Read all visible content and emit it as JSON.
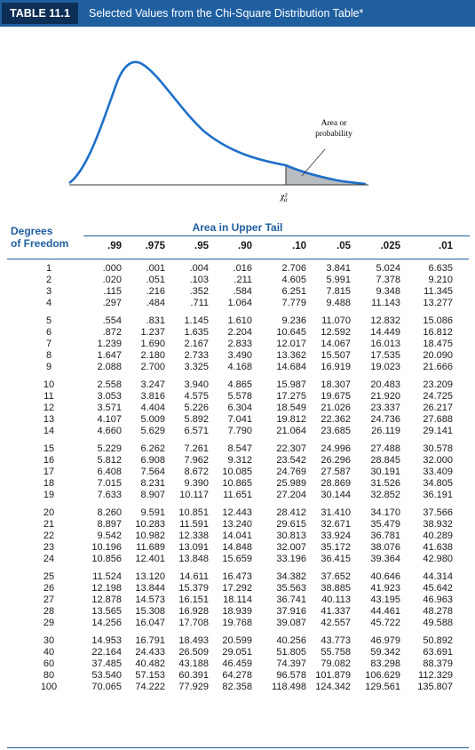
{
  "header": {
    "tag": "TABLE 11.1",
    "title": "Selected Values from the Chi-Square Distribution Table*"
  },
  "figure": {
    "annotation": "Area or\nprobability",
    "annotation_line1": "Area or",
    "annotation_line2": "probability",
    "critical_label": "χ²",
    "critical_sub": "α"
  },
  "table": {
    "dof_label_1": "Degrees",
    "dof_label_2": "of Freedom",
    "upper_tail_label": "Area in Upper Tail",
    "columns": [
      ".99",
      ".975",
      ".95",
      ".90",
      ".10",
      ".05",
      ".025",
      ".01"
    ],
    "groups": [
      [
        [
          "1",
          ".000",
          ".001",
          ".004",
          ".016",
          "2.706",
          "3.841",
          "5.024",
          "6.635"
        ],
        [
          "2",
          ".020",
          ".051",
          ".103",
          ".211",
          "4.605",
          "5.991",
          "7.378",
          "9.210"
        ],
        [
          "3",
          ".115",
          ".216",
          ".352",
          ".584",
          "6.251",
          "7.815",
          "9.348",
          "11.345"
        ],
        [
          "4",
          ".297",
          ".484",
          ".711",
          "1.064",
          "7.779",
          "9.488",
          "11.143",
          "13.277"
        ]
      ],
      [
        [
          "5",
          ".554",
          ".831",
          "1.145",
          "1.610",
          "9.236",
          "11.070",
          "12.832",
          "15.086"
        ],
        [
          "6",
          ".872",
          "1.237",
          "1.635",
          "2.204",
          "10.645",
          "12.592",
          "14.449",
          "16.812"
        ],
        [
          "7",
          "1.239",
          "1.690",
          "2.167",
          "2.833",
          "12.017",
          "14.067",
          "16.013",
          "18.475"
        ],
        [
          "8",
          "1.647",
          "2.180",
          "2.733",
          "3.490",
          "13.362",
          "15.507",
          "17.535",
          "20.090"
        ],
        [
          "9",
          "2.088",
          "2.700",
          "3.325",
          "4.168",
          "14.684",
          "16.919",
          "19.023",
          "21.666"
        ]
      ],
      [
        [
          "10",
          "2.558",
          "3.247",
          "3.940",
          "4.865",
          "15.987",
          "18.307",
          "20.483",
          "23.209"
        ],
        [
          "11",
          "3.053",
          "3.816",
          "4.575",
          "5.578",
          "17.275",
          "19.675",
          "21.920",
          "24.725"
        ],
        [
          "12",
          "3.571",
          "4.404",
          "5.226",
          "6.304",
          "18.549",
          "21.026",
          "23.337",
          "26.217"
        ],
        [
          "13",
          "4.107",
          "5.009",
          "5.892",
          "7.041",
          "19.812",
          "22.362",
          "24.736",
          "27.688"
        ],
        [
          "14",
          "4.660",
          "5.629",
          "6.571",
          "7.790",
          "21.064",
          "23.685",
          "26.119",
          "29.141"
        ]
      ],
      [
        [
          "15",
          "5.229",
          "6.262",
          "7.261",
          "8.547",
          "22.307",
          "24.996",
          "27.488",
          "30.578"
        ],
        [
          "16",
          "5.812",
          "6.908",
          "7.962",
          "9.312",
          "23.542",
          "26.296",
          "28.845",
          "32.000"
        ],
        [
          "17",
          "6.408",
          "7.564",
          "8.672",
          "10.085",
          "24.769",
          "27.587",
          "30.191",
          "33.409"
        ],
        [
          "18",
          "7.015",
          "8.231",
          "9.390",
          "10.865",
          "25.989",
          "28.869",
          "31.526",
          "34.805"
        ],
        [
          "19",
          "7.633",
          "8.907",
          "10.117",
          "11.651",
          "27.204",
          "30.144",
          "32.852",
          "36.191"
        ]
      ],
      [
        [
          "20",
          "8.260",
          "9.591",
          "10.851",
          "12.443",
          "28.412",
          "31.410",
          "34.170",
          "37.566"
        ],
        [
          "21",
          "8.897",
          "10.283",
          "11.591",
          "13.240",
          "29.615",
          "32.671",
          "35.479",
          "38.932"
        ],
        [
          "22",
          "9.542",
          "10.982",
          "12.338",
          "14.041",
          "30.813",
          "33.924",
          "36.781",
          "40.289"
        ],
        [
          "23",
          "10.196",
          "11.689",
          "13.091",
          "14.848",
          "32.007",
          "35.172",
          "38.076",
          "41.638"
        ],
        [
          "24",
          "10.856",
          "12.401",
          "13.848",
          "15.659",
          "33.196",
          "36.415",
          "39.364",
          "42.980"
        ]
      ],
      [
        [
          "25",
          "11.524",
          "13.120",
          "14.611",
          "16.473",
          "34.382",
          "37.652",
          "40.646",
          "44.314"
        ],
        [
          "26",
          "12.198",
          "13.844",
          "15.379",
          "17.292",
          "35.563",
          "38.885",
          "41.923",
          "45.642"
        ],
        [
          "27",
          "12.878",
          "14.573",
          "16.151",
          "18.114",
          "36.741",
          "40.113",
          "43.195",
          "46.963"
        ],
        [
          "28",
          "13.565",
          "15.308",
          "16.928",
          "18.939",
          "37.916",
          "41.337",
          "44.461",
          "48.278"
        ],
        [
          "29",
          "14.256",
          "16.047",
          "17.708",
          "19.768",
          "39.087",
          "42.557",
          "45.722",
          "49.588"
        ]
      ],
      [
        [
          "30",
          "14.953",
          "16.791",
          "18.493",
          "20.599",
          "40.256",
          "43.773",
          "46.979",
          "50.892"
        ],
        [
          "40",
          "22.164",
          "24.433",
          "26.509",
          "29.051",
          "51.805",
          "55.758",
          "59.342",
          "63.691"
        ],
        [
          "60",
          "37.485",
          "40.482",
          "43.188",
          "46.459",
          "74.397",
          "79.082",
          "83.298",
          "88.379"
        ],
        [
          "80",
          "53.540",
          "57.153",
          "60.391",
          "64.278",
          "96.578",
          "101.879",
          "106.629",
          "112.329"
        ],
        [
          "100",
          "70.065",
          "74.222",
          "77.929",
          "82.358",
          "118.498",
          "124.342",
          "129.561",
          "135.807"
        ]
      ]
    ]
  },
  "colors": {
    "header_bg": "#1f5fa0",
    "tag_bg": "#0e2f55",
    "curve": "#1f6fc8",
    "shade": "#b9bcc0",
    "accent_text": "#1f5fa0"
  }
}
